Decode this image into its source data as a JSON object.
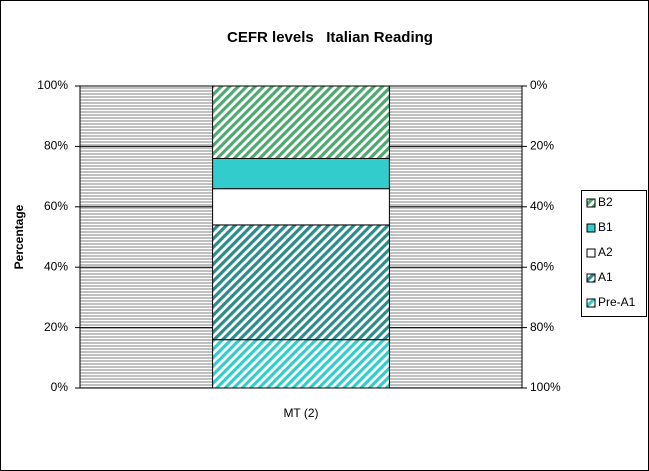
{
  "chart_data": {
    "type": "stacked_bar",
    "title": "CEFR levels   Italian Reading",
    "y_label": "Percentage",
    "categories": [
      "MT (2)"
    ],
    "series": [
      {
        "name": "Pre-A1",
        "color": "#33cccc",
        "fill_style": "hatch",
        "values": [
          16
        ]
      },
      {
        "name": "A1",
        "color": "#2e8b8b",
        "fill_style": "hatch",
        "values": [
          38
        ]
      },
      {
        "name": "A2",
        "color": "#ffffff",
        "fill_style": "solid",
        "values": [
          12
        ]
      },
      {
        "name": "B1",
        "color": "#33cccc",
        "fill_style": "solid",
        "values": [
          10
        ]
      },
      {
        "name": "B2",
        "color": "#4fa86f",
        "fill_style": "hatch",
        "values": [
          24
        ]
      }
    ],
    "ylim": [
      0,
      100
    ],
    "yticks": [
      {
        "value": 0,
        "label": "0%"
      },
      {
        "value": 20,
        "label": "20%"
      },
      {
        "value": 40,
        "label": "40%"
      },
      {
        "value": 60,
        "label": "60%"
      },
      {
        "value": 80,
        "label": "80%"
      },
      {
        "value": 100,
        "label": "100%"
      }
    ],
    "y2lim": [
      100,
      0
    ],
    "y2ticks": [
      {
        "value": 0,
        "label": "0%"
      },
      {
        "value": 20,
        "label": "20%"
      },
      {
        "value": 40,
        "label": "40%"
      },
      {
        "value": 60,
        "label": "60%"
      },
      {
        "value": 80,
        "label": "80%"
      },
      {
        "value": 100,
        "label": "100%"
      }
    ],
    "grid": true,
    "legend": "right"
  }
}
